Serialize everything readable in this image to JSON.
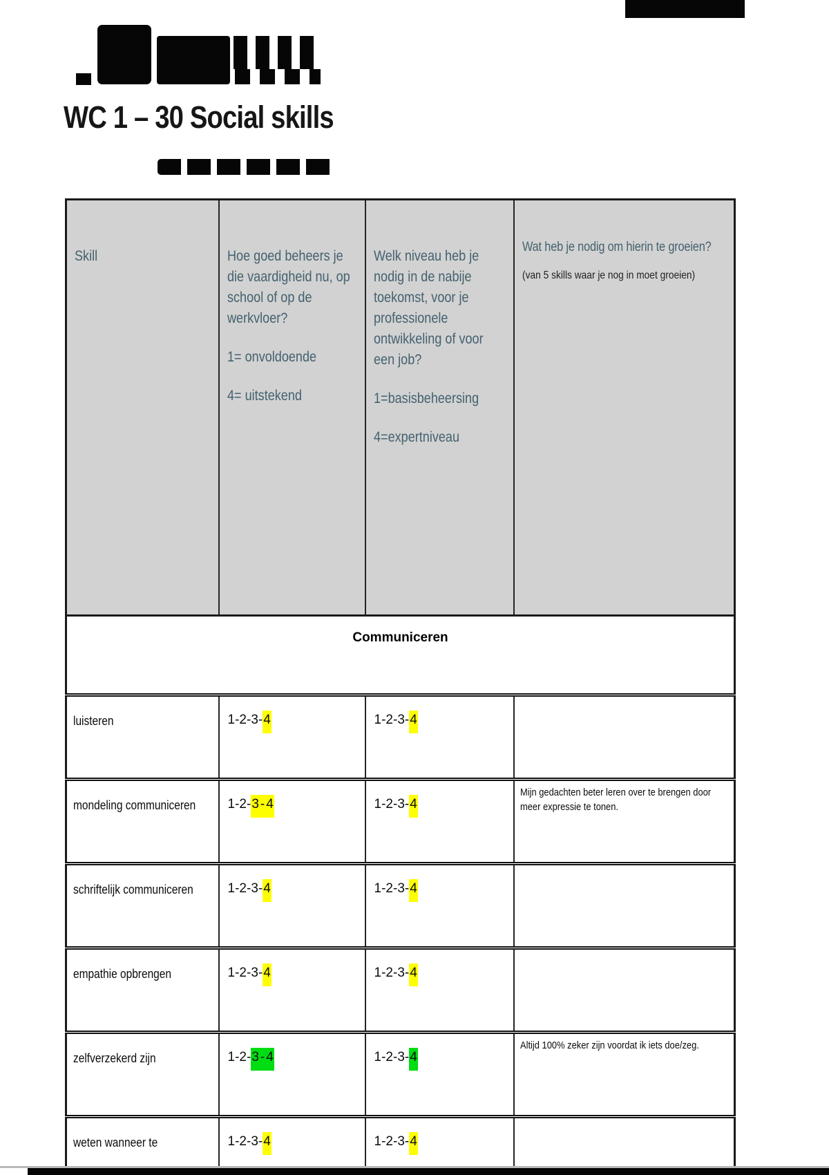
{
  "page": {
    "title": "WC 1 – 30 Social skills"
  },
  "colors": {
    "highlight_yellow": "#fdff00",
    "highlight_green": "#00dd12",
    "header_text": "#44616f",
    "header_bg": "#d2d2d2"
  },
  "table": {
    "columns": {
      "skill": {
        "label": "Skill"
      },
      "current": {
        "lines": [
          "Hoe goed beheers je",
          "die vaardigheid nu, op",
          "school of op de",
          "werkvloer?",
          "",
          "1= onvoldoende",
          "",
          "4= uitstekend"
        ]
      },
      "needed": {
        "lines": [
          "Welk niveau heb je",
          "nodig in de nabije",
          "toekomst, voor je",
          "professionele",
          "ontwikkeling of voor",
          "een job?",
          "",
          "1=basisbeheersing",
          "",
          "4=expertniveau"
        ]
      },
      "growth": {
        "title": "Wat heb je nodig om hierin te groeien?",
        "subtitle": "(van 5 skills waar je nog in moet groeien)"
      }
    },
    "section_header": "Communiceren",
    "scale": [
      "1",
      "2",
      "3",
      "4"
    ],
    "rows": [
      {
        "skill": "luisteren",
        "current": {
          "highlight": [
            4
          ],
          "color": "yellow"
        },
        "needed": {
          "highlight": [
            4
          ],
          "color": "yellow"
        },
        "note_lines": []
      },
      {
        "skill": "mondeling communiceren",
        "current": {
          "highlight": [
            3,
            4
          ],
          "color": "yellow"
        },
        "needed": {
          "highlight": [
            4
          ],
          "color": "yellow"
        },
        "note_lines": [
          "Mijn gedachten beter leren over te brengen door",
          "meer expressie te tonen."
        ]
      },
      {
        "skill": "schriftelijk communiceren",
        "current": {
          "highlight": [
            4
          ],
          "color": "yellow"
        },
        "needed": {
          "highlight": [
            4
          ],
          "color": "yellow"
        },
        "note_lines": []
      },
      {
        "skill": "empathie opbrengen",
        "current": {
          "highlight": [
            4
          ],
          "color": "yellow"
        },
        "needed": {
          "highlight": [
            4
          ],
          "color": "yellow"
        },
        "note_lines": []
      },
      {
        "skill": "zelfverzekerd zijn",
        "current": {
          "highlight": [
            3,
            4
          ],
          "color": "green"
        },
        "needed": {
          "highlight": [
            4
          ],
          "color": "green"
        },
        "note_lines": [
          "Altijd 100% zeker zijn voordat ik iets doe/zeg."
        ]
      },
      {
        "skill": "weten wanneer te",
        "current": {
          "highlight": [
            4
          ],
          "color": "yellow"
        },
        "needed": {
          "highlight": [
            4
          ],
          "color": "yellow"
        },
        "note_lines": []
      }
    ]
  }
}
